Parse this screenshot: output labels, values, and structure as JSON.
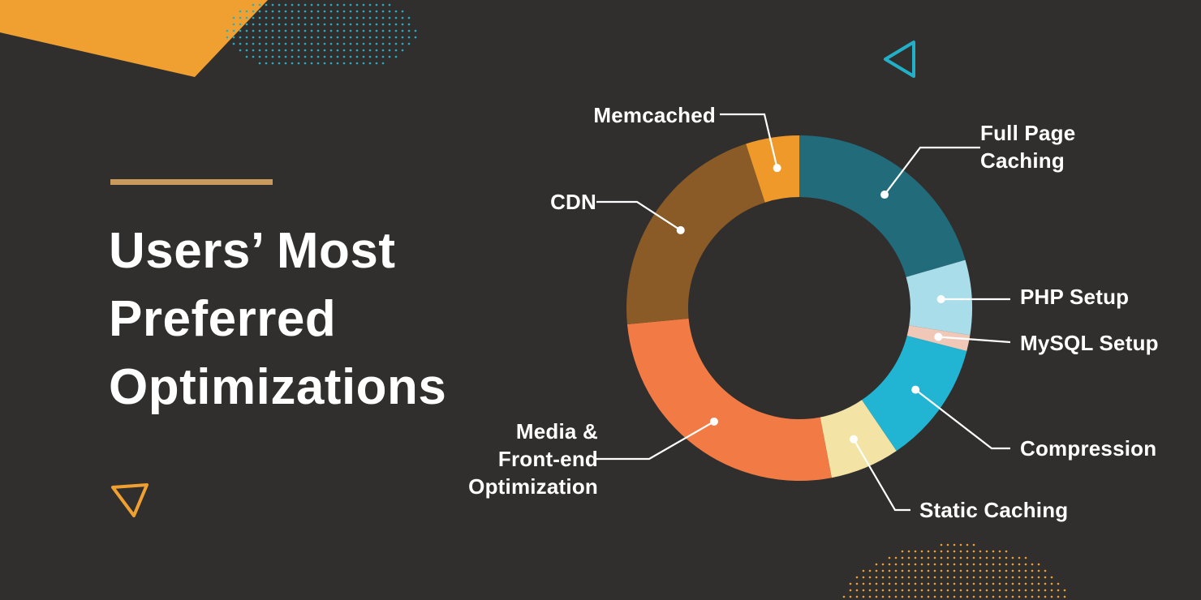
{
  "title_lines": [
    "Users’ Most",
    "Preferred",
    "Optimizations"
  ],
  "colors": {
    "background": "#302f2d",
    "accent_orange": "#f0a030",
    "accent_teal": "#22b0c8",
    "title_bar": "#c99a5c"
  },
  "decorations": {
    "top_triangle": "teal-triangle-outline-icon",
    "bottom_triangle": "orange-triangle-outline-icon"
  },
  "chart_data": {
    "type": "pie",
    "donut": true,
    "title": "Users’ Most Preferred Optimizations",
    "slices": [
      {
        "label": "Full Page\nCaching",
        "value": 20.5,
        "color": "#226b7b"
      },
      {
        "label": "PHP Setup",
        "value": 7.0,
        "color": "#a8dde9"
      },
      {
        "label": "MySQL Setup",
        "value": 1.5,
        "color": "#f1c8b8"
      },
      {
        "label": "Compression",
        "value": 11.5,
        "color": "#22b5d3"
      },
      {
        "label": "Static Caching",
        "value": 6.5,
        "color": "#f3e4a6"
      },
      {
        "label": "Media &\nFront-end\nOptimization",
        "value": 26.5,
        "color": "#f27b45"
      },
      {
        "label": "CDN",
        "value": 21.5,
        "color": "#8a5a27"
      },
      {
        "label": "Memcached",
        "value": 5.0,
        "color": "#ef992b"
      }
    ]
  }
}
